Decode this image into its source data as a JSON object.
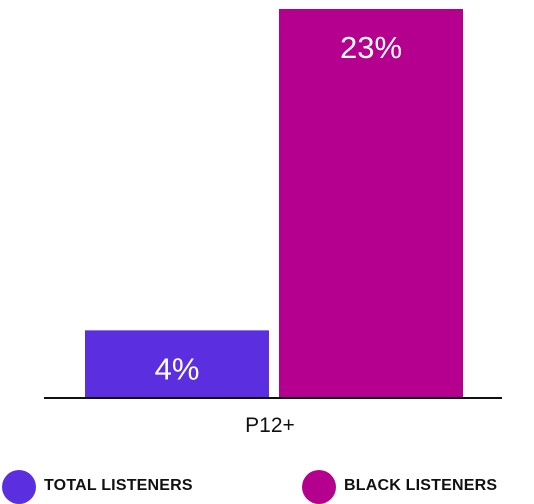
{
  "chart_data": {
    "type": "bar",
    "categories": [
      "P12+"
    ],
    "series": [
      {
        "name": "TOTAL LISTENERS",
        "values": [
          4
        ],
        "value_labels": [
          "4%"
        ],
        "color": "#5b2ee0"
      },
      {
        "name": "BLACK LISTENERS",
        "values": [
          23
        ],
        "value_labels": [
          "23%"
        ],
        "color": "#b5008f"
      }
    ],
    "ylim": [
      0,
      23
    ],
    "grid": false,
    "legend_placement": "bottom"
  }
}
